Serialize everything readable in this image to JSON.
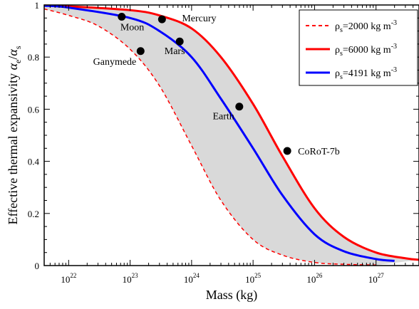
{
  "chart_data": {
    "type": "line",
    "xlabel": "Mass (kg)",
    "ylabel_prefix": "Effective thermal expansivity ",
    "ylabel_alpha": "α",
    "ylabel_sub_e": "e",
    "ylabel_slash": "/",
    "ylabel_sub_s": "s",
    "xscale": "log",
    "xlim": [
      4e+21,
      5e+27
    ],
    "ylim": [
      0,
      1
    ],
    "xticks": [
      {
        "value": 1e+22,
        "base": "10",
        "exp": "22"
      },
      {
        "value": 1e+23,
        "base": "10",
        "exp": "23"
      },
      {
        "value": 1e+24,
        "base": "10",
        "exp": "24"
      },
      {
        "value": 1e+25,
        "base": "10",
        "exp": "25"
      },
      {
        "value": 1e+26,
        "base": "10",
        "exp": "26"
      },
      {
        "value": 1e+27,
        "base": "10",
        "exp": "27"
      }
    ],
    "yticks": [
      {
        "value": 0,
        "label": "0"
      },
      {
        "value": 0.2,
        "label": "0.2"
      },
      {
        "value": 0.4,
        "label": "0.4"
      },
      {
        "value": 0.6,
        "label": "0.6"
      },
      {
        "value": 0.8,
        "label": "0.8"
      },
      {
        "value": 1,
        "label": "1"
      }
    ],
    "shaded_region": {
      "between": [
        "ρs=2000",
        "ρs=6000"
      ],
      "color": "#d9d9d9"
    },
    "series": [
      {
        "key": "rho2000",
        "rho": "ρ",
        "sub": "s",
        "eq": "=2000 kg m",
        "sup": "-3",
        "color": "#ff0000",
        "style": "dashed",
        "x": [
          4e+21,
          1e+22,
          3e+22,
          1e+23,
          3e+23,
          1e+24,
          3e+24,
          1e+25,
          3e+25,
          1e+26,
          3e+26,
          1e+27
        ],
        "y": [
          0.985,
          0.96,
          0.92,
          0.83,
          0.69,
          0.46,
          0.25,
          0.1,
          0.04,
          0.012,
          0.005,
          0.002
        ]
      },
      {
        "key": "rho6000",
        "rho": "ρ",
        "sub": "s",
        "eq": "=6000 kg m",
        "sup": "-3",
        "color": "#ff0000",
        "style": "solid",
        "x": [
          4e+21,
          1e+22,
          1e+23,
          3e+23,
          1e+24,
          3e+24,
          1e+25,
          3e+25,
          1e+26,
          3e+26,
          1e+27,
          3e+27,
          5e+27
        ],
        "y": [
          0.998,
          0.995,
          0.98,
          0.96,
          0.91,
          0.8,
          0.62,
          0.42,
          0.22,
          0.11,
          0.05,
          0.028,
          0.022
        ]
      },
      {
        "key": "rho4191",
        "rho": "ρ",
        "sub": "s",
        "eq": "=4191 kg m",
        "sup": "-3",
        "color": "#0000ff",
        "style": "solid",
        "x": [
          4e+21,
          1e+22,
          1e+23,
          3e+23,
          1e+24,
          3e+24,
          1e+25,
          3e+25,
          1e+26,
          3e+26,
          1e+27,
          2e+27
        ],
        "y": [
          0.997,
          0.99,
          0.95,
          0.9,
          0.8,
          0.64,
          0.45,
          0.27,
          0.12,
          0.055,
          0.025,
          0.018
        ]
      }
    ],
    "points": [
      {
        "name": "Moon",
        "x": 7.3e+22,
        "y": 0.955,
        "anchor": "start",
        "dx": -2,
        "dy": 19
      },
      {
        "name": "Mercury",
        "x": 3.3e+23,
        "y": 0.945,
        "anchor": "start",
        "dx": 28,
        "dy": 3
      },
      {
        "name": "Mars",
        "x": 6.4e+23,
        "y": 0.86,
        "anchor": "middle",
        "dx": -7,
        "dy": 18
      },
      {
        "name": "Ganymede",
        "x": 1.48e+23,
        "y": 0.823,
        "anchor": "end",
        "dx": -6,
        "dy": 19
      },
      {
        "name": "Earth",
        "x": 5.97e+24,
        "y": 0.61,
        "anchor": "end",
        "dx": -7,
        "dy": 18
      },
      {
        "name": "CoRoT-7b",
        "x": 3.6e+25,
        "y": 0.44,
        "anchor": "start",
        "dx": 15,
        "dy": 5
      }
    ]
  }
}
